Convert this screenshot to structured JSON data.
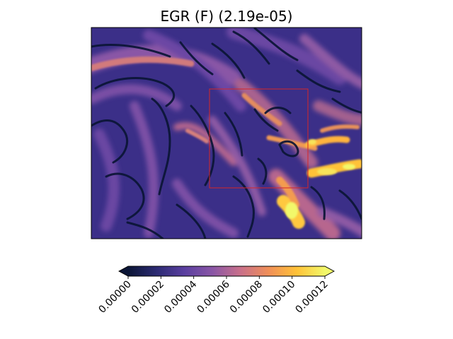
{
  "chart_data": {
    "type": "heatmap",
    "title": "EGR (F) (2.19e-05)",
    "xlabel": "",
    "ylabel": "",
    "grid": false,
    "highlight_box": {
      "color": "#d62728"
    },
    "colorbar": {
      "orientation": "horizontal",
      "location": "bottom",
      "extend": "both",
      "colormap": "CMRmap-like (dark navy → purple → orange → yellow)",
      "vmin": 0.0,
      "vmax": 0.00012,
      "ticks": [
        "0.00000",
        "0.00002",
        "0.00004",
        "0.00006",
        "0.00008",
        "0.00010",
        "0.00012"
      ],
      "tick_rotation_deg": 45,
      "stops": [
        "#0b1536",
        "#2b2a72",
        "#5a3fa0",
        "#8a56a6",
        "#c9708a",
        "#f08f58",
        "#ffc238",
        "#f2f86a"
      ]
    }
  }
}
